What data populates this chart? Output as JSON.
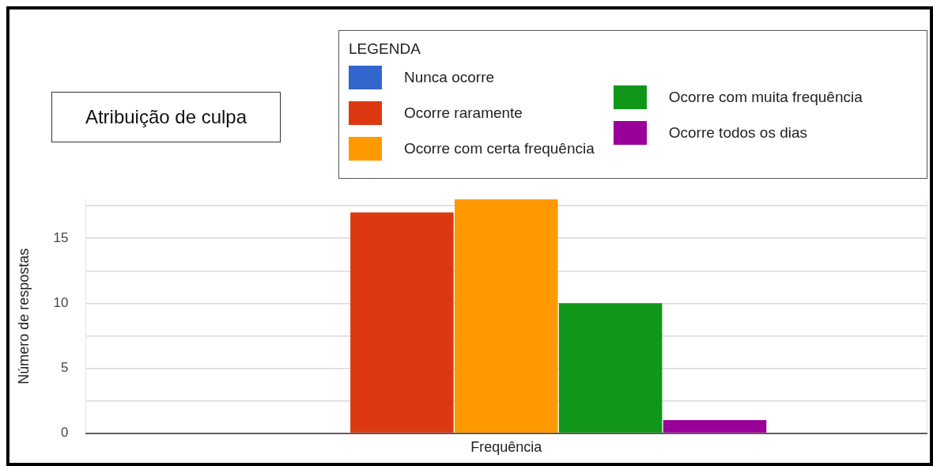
{
  "chart_data": {
    "type": "bar",
    "title": "Atribuição de culpa",
    "legend_title": "LEGENDA",
    "ylabel": "Número de respostas",
    "categories": [
      "Frequência"
    ],
    "series": [
      {
        "name": "Nunca ocorre",
        "color": "#3366cc",
        "values": [
          0
        ]
      },
      {
        "name": "Ocorre raramente",
        "color": "#dc3912",
        "values": [
          17
        ]
      },
      {
        "name": "Ocorre com certa frequência",
        "color": "#ff9900",
        "values": [
          18
        ]
      },
      {
        "name": "Ocorre com muita frequência",
        "color": "#109618",
        "values": [
          10
        ]
      },
      {
        "name": "Ocorre todos os dias",
        "color": "#990099",
        "values": [
          1
        ]
      }
    ],
    "ylim": [
      0,
      18
    ],
    "yticks": [
      0,
      {
        "value": 2.5,
        "label": null
      },
      5,
      {
        "value": 7.5,
        "label": null
      },
      10,
      {
        "value": 12.5,
        "label": null
      },
      15,
      {
        "value": 17.5,
        "label": null
      }
    ],
    "grid": true,
    "legend": "top right"
  }
}
